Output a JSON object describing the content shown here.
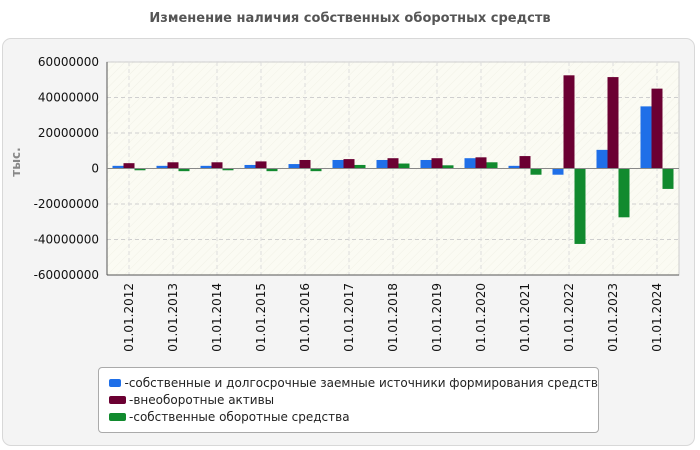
{
  "title": "Изменение наличия собственных оборотных средств",
  "chart_data": {
    "type": "bar",
    "title": "Изменение наличия собственных оборотных средств",
    "ylabel": "тыс.",
    "xlabel": "",
    "ylim": [
      -60000000,
      60000000
    ],
    "yticks": [
      60000000,
      40000000,
      20000000,
      0,
      -20000000,
      -40000000,
      -60000000
    ],
    "grid": true,
    "legend_position": "bottom",
    "categories": [
      "01.01.2012",
      "01.01.2013",
      "01.01.2014",
      "01.01.2015",
      "01.01.2016",
      "01.01.2017",
      "01.01.2018",
      "01.01.2019",
      "01.01.2020",
      "01.01.2021",
      "01.01.2022",
      "01.01.2023",
      "01.01.2024"
    ],
    "series": [
      {
        "name": "собственные и долгосрочные заемные источники формирования средств",
        "color": "#1f6fe8",
        "values": [
          1500000,
          1500000,
          1500000,
          2000000,
          2500000,
          4800000,
          4800000,
          4800000,
          5800000,
          1500000,
          -3500000,
          10500000,
          35000000
        ]
      },
      {
        "name": "внеоборотные активы",
        "color": "#6b0032",
        "values": [
          3000000,
          3500000,
          3500000,
          4000000,
          4800000,
          5300000,
          5800000,
          5800000,
          6300000,
          7000000,
          52500000,
          51500000,
          45000000
        ]
      },
      {
        "name": "собственные оборотные средства",
        "color": "#118a2e",
        "values": [
          -1000000,
          -1500000,
          -1000000,
          -1500000,
          -1500000,
          2000000,
          2800000,
          1800000,
          3500000,
          -3500000,
          -42500000,
          -27500000,
          -11500000
        ]
      }
    ]
  },
  "legend_prefix": "- "
}
